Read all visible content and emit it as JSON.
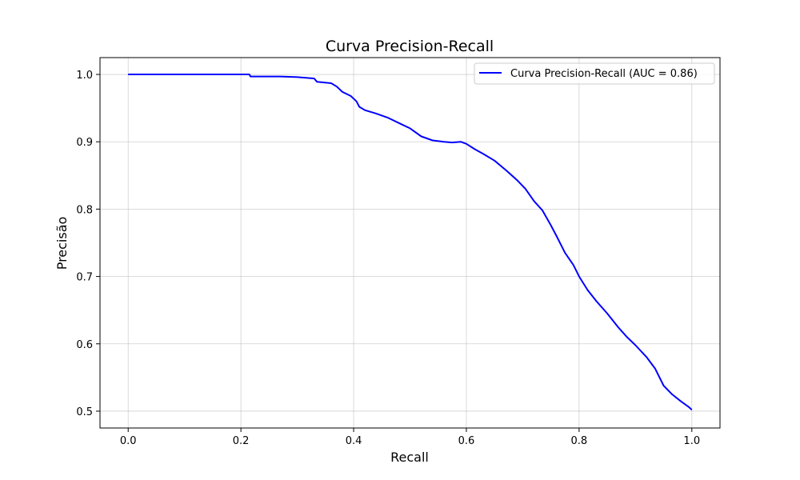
{
  "chart_data": {
    "type": "line",
    "title": "Curva Precision-Recall",
    "xlabel": "Recall",
    "ylabel": "Precisão",
    "xlim": [
      -0.05,
      1.05
    ],
    "ylim": [
      0.475,
      1.025
    ],
    "xticks": [
      0.0,
      0.2,
      0.4,
      0.6,
      0.8,
      1.0
    ],
    "xtick_labels": [
      "0.0",
      "0.2",
      "0.4",
      "0.6",
      "0.8",
      "1.0"
    ],
    "yticks": [
      0.5,
      0.6,
      0.7,
      0.8,
      0.9,
      1.0
    ],
    "ytick_labels": [
      "0.5",
      "0.6",
      "0.7",
      "0.8",
      "0.9",
      "1.0"
    ],
    "grid": true,
    "legend_position": "top-right",
    "series": [
      {
        "name": "Curva Precision-Recall (AUC = 0.86)",
        "color": "#0000ff",
        "x": [
          0.0,
          0.05,
          0.1,
          0.15,
          0.2,
          0.215,
          0.217,
          0.24,
          0.27,
          0.3,
          0.33,
          0.335,
          0.36,
          0.37,
          0.38,
          0.395,
          0.405,
          0.41,
          0.42,
          0.44,
          0.46,
          0.48,
          0.5,
          0.52,
          0.54,
          0.56,
          0.575,
          0.59,
          0.6,
          0.615,
          0.63,
          0.65,
          0.67,
          0.69,
          0.705,
          0.72,
          0.735,
          0.75,
          0.76,
          0.775,
          0.79,
          0.8,
          0.815,
          0.83,
          0.85,
          0.87,
          0.885,
          0.9,
          0.92,
          0.935,
          0.95,
          0.965,
          0.98,
          0.995,
          1.0
        ],
        "y": [
          1.0,
          1.0,
          1.0,
          1.0,
          1.0,
          1.0,
          0.997,
          0.997,
          0.997,
          0.996,
          0.994,
          0.989,
          0.987,
          0.982,
          0.974,
          0.968,
          0.96,
          0.952,
          0.947,
          0.942,
          0.936,
          0.928,
          0.92,
          0.908,
          0.902,
          0.9,
          0.899,
          0.9,
          0.897,
          0.889,
          0.882,
          0.872,
          0.858,
          0.843,
          0.83,
          0.812,
          0.798,
          0.776,
          0.76,
          0.735,
          0.717,
          0.7,
          0.68,
          0.664,
          0.645,
          0.624,
          0.61,
          0.598,
          0.58,
          0.563,
          0.538,
          0.525,
          0.515,
          0.506,
          0.502
        ]
      }
    ]
  }
}
